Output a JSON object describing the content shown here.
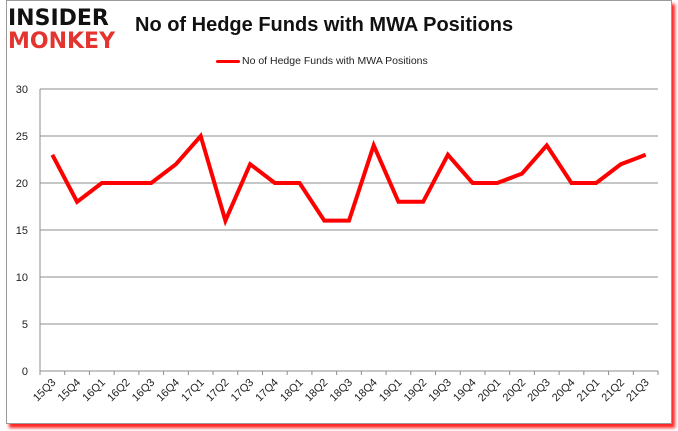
{
  "logo": {
    "line1": "INSIDER",
    "line2": "MONKEY"
  },
  "chart_data": {
    "type": "line",
    "title": "No of Hedge Funds with MWA Positions",
    "xlabel": "",
    "ylabel": "",
    "ylim": [
      0,
      30
    ],
    "yticks": [
      0,
      5,
      10,
      15,
      20,
      25,
      30
    ],
    "grid": true,
    "legend_position": "top",
    "categories": [
      "15Q3",
      "15Q4",
      "16Q1",
      "16Q2",
      "16Q3",
      "16Q4",
      "17Q1",
      "17Q2",
      "17Q3",
      "17Q4",
      "18Q1",
      "18Q2",
      "18Q3",
      "18Q4",
      "19Q1",
      "19Q2",
      "19Q3",
      "19Q4",
      "20Q1",
      "20Q2",
      "20Q3",
      "20Q4",
      "21Q1",
      "21Q2",
      "21Q3"
    ],
    "series": [
      {
        "name": "No of Hedge Funds with MWA Positions",
        "color": "#ff0000",
        "values": [
          23,
          18,
          20,
          20,
          20,
          22,
          25,
          16,
          22,
          20,
          20,
          16,
          16,
          24,
          18,
          18,
          23,
          20,
          20,
          21,
          24,
          20,
          20,
          22,
          23
        ]
      }
    ]
  }
}
